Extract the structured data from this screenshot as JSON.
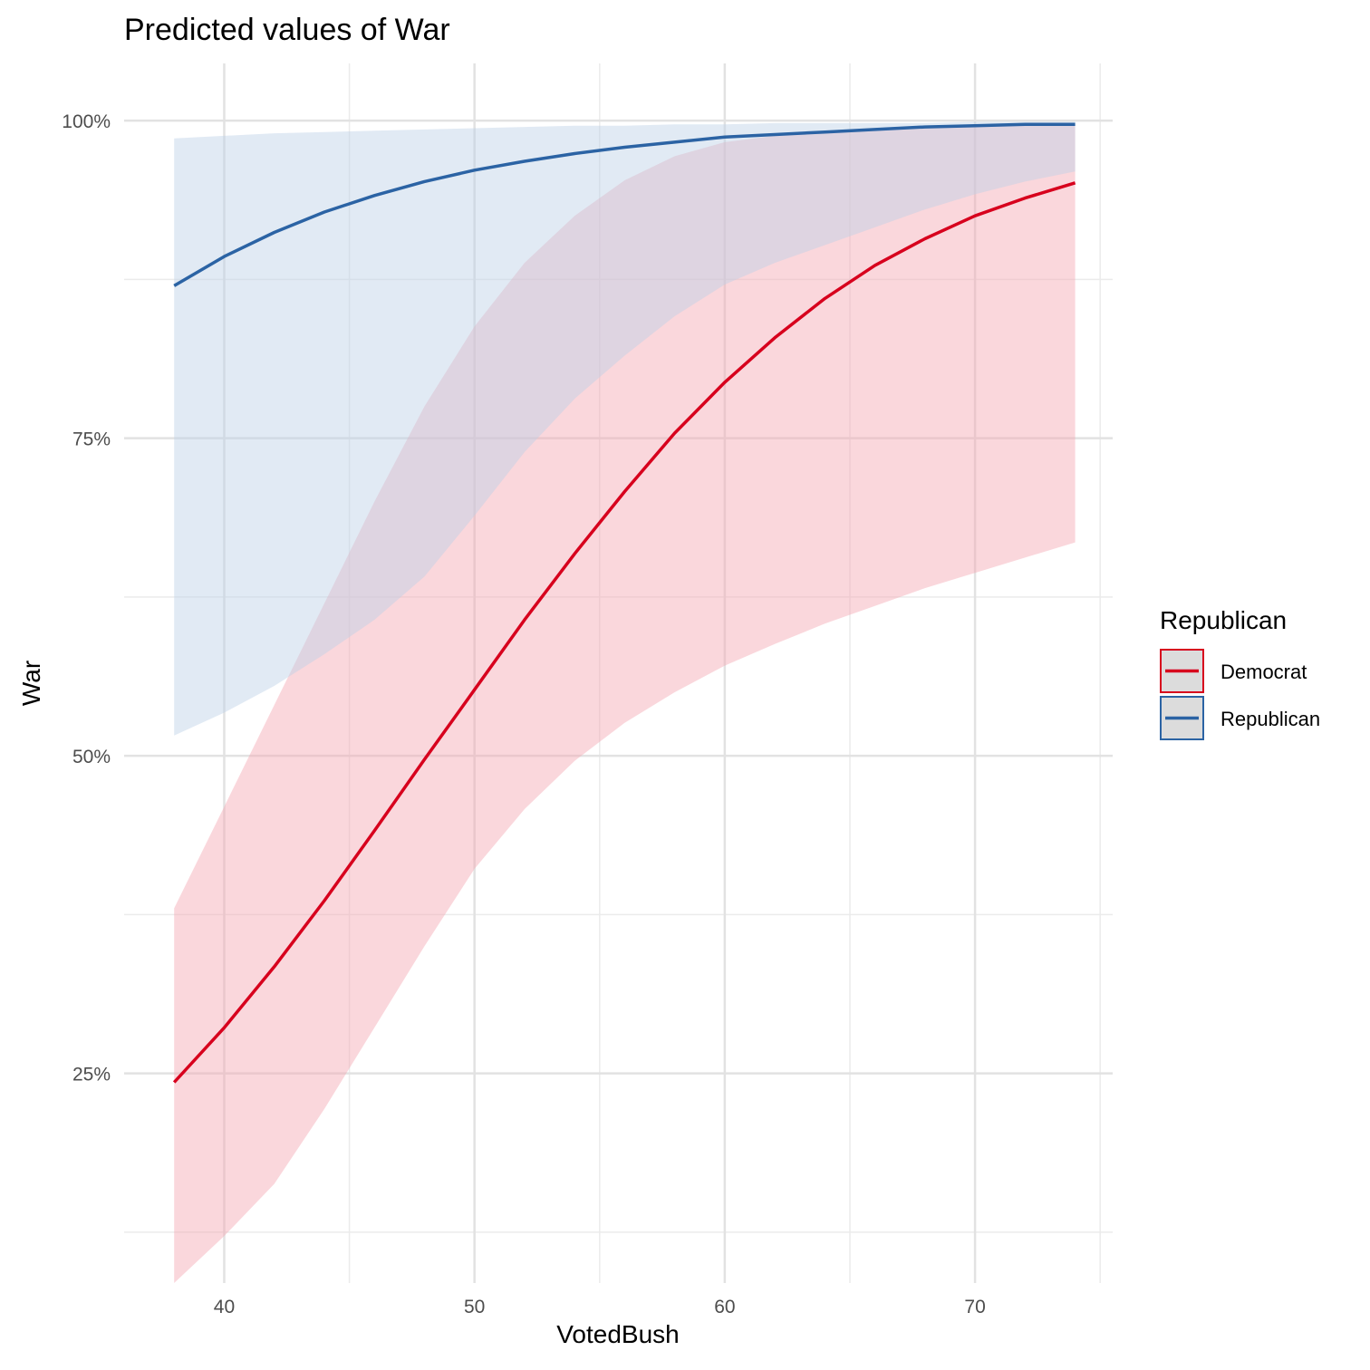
{
  "chart_data": {
    "type": "line",
    "title": "Predicted values of War",
    "xlabel": "VotedBush",
    "ylabel": "War",
    "xlim": [
      36,
      75.5
    ],
    "ylim": [
      0.085,
      1.045
    ],
    "x_ticks": [
      40,
      50,
      60,
      70
    ],
    "y_ticks": [
      0.25,
      0.5,
      0.75,
      1.0
    ],
    "y_tick_labels": [
      "25%",
      "50%",
      "75%",
      "100%"
    ],
    "grid": true,
    "legend": {
      "title": "Republican",
      "placement": "right"
    },
    "x": [
      38,
      40,
      42,
      44,
      46,
      48,
      50,
      52,
      54,
      56,
      58,
      60,
      62,
      64,
      66,
      68,
      70,
      72,
      74
    ],
    "series": [
      {
        "name": "Democrat",
        "color": "#d7001d",
        "fill": "#f4a6b1",
        "predicted": [
          0.243,
          0.286,
          0.334,
          0.386,
          0.441,
          0.497,
          0.552,
          0.607,
          0.659,
          0.708,
          0.754,
          0.794,
          0.829,
          0.86,
          0.886,
          0.907,
          0.925,
          0.939,
          0.951
        ],
        "lower": [
          0.085,
          0.122,
          0.163,
          0.222,
          0.286,
          0.35,
          0.411,
          0.458,
          0.496,
          0.526,
          0.55,
          0.571,
          0.588,
          0.604,
          0.618,
          0.632,
          0.644,
          0.656,
          0.668
        ],
        "upper": [
          0.38,
          0.46,
          0.54,
          0.62,
          0.7,
          0.775,
          0.838,
          0.888,
          0.925,
          0.953,
          0.972,
          0.983,
          0.988,
          0.992,
          0.994,
          0.995,
          0.996,
          0.996,
          0.997
        ]
      },
      {
        "name": "Republican",
        "color": "#2b63a4",
        "fill": "#bdd0e6",
        "predicted": [
          0.87,
          0.893,
          0.912,
          0.928,
          0.941,
          0.952,
          0.961,
          0.968,
          0.974,
          0.979,
          0.983,
          0.987,
          0.989,
          0.991,
          0.993,
          0.995,
          0.996,
          0.997,
          0.997
        ],
        "lower": [
          0.516,
          0.534,
          0.555,
          0.58,
          0.607,
          0.641,
          0.689,
          0.739,
          0.781,
          0.815,
          0.846,
          0.871,
          0.888,
          0.902,
          0.916,
          0.93,
          0.942,
          0.952,
          0.96
        ],
        "upper": [
          0.986,
          0.988,
          0.99,
          0.991,
          0.992,
          0.993,
          0.994,
          0.995,
          0.996,
          0.996,
          0.997,
          0.997,
          0.998,
          0.998,
          0.998,
          0.998,
          0.999,
          0.999,
          0.999
        ]
      }
    ]
  }
}
